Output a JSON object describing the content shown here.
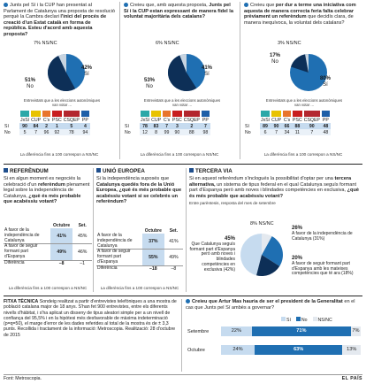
{
  "colors": {
    "si": "#1f6fb2",
    "no": "#0d2f57",
    "nsnc": "#c8d4e0",
    "light": "#c6dbef",
    "lighter": "#eaf1f8"
  },
  "top_panels": [
    {
      "question_pre": "Junts pel Sí i la CUP han presentat al Parlament de Catalunya una proposta de resolució perquè la Cambra declari ",
      "question_bold": "l'inici del procés de creació d'un Estat català en forma de república. Esteu d'acord amb aquesta proposta?",
      "labels": {
        "si": "Sí",
        "no": "No",
        "nsnc": "NS/NC"
      },
      "pct": {
        "si": "42%",
        "no": "51%",
        "nsnc": "7%"
      },
      "voters_label": "Entrevistats que a les eleccions autonòmiques van votar ...",
      "parties": [
        "JxSí",
        "CUP",
        "C's",
        "PSC",
        "CSQEP",
        "PP"
      ],
      "row_si": [
        "Sí",
        "90",
        "84",
        "2",
        "1",
        "5",
        "4"
      ],
      "row_no": [
        "No",
        "5",
        "7",
        "96",
        "92",
        "78",
        "94"
      ],
      "diff": "La diferència fins a 100 correspon a NS/NC"
    },
    {
      "question_pre": "Creieu que, amb aquesta proposta, ",
      "question_bold": "Junts pel Sí i la CUP estan expressant de manera fidel la voluntat majoritària dels catalans?",
      "labels": {
        "si": "Sí",
        "no": "No",
        "nsnc": "NS/NC"
      },
      "pct": {
        "si": "41%",
        "no": "53%",
        "nsnc": "6%"
      },
      "voters_label": "Entrevistats que a les eleccions autonòmiques van votar ...",
      "parties": [
        "JxSí",
        "CUP",
        "C's",
        "PSC",
        "CSQEP",
        "PP"
      ],
      "row_si": [
        "Sí",
        "78",
        "83",
        "7",
        "3",
        "2",
        "7"
      ],
      "row_no": [
        "No",
        "12",
        "8",
        "99",
        "90",
        "88",
        "98"
      ],
      "diff": "La diferència fins a 100 correspon a NS/NC"
    },
    {
      "question_pre": "Creieu que ",
      "question_bold": "per dur a terme una iniciativa com aquesta de manera correcta feria falta celebrar prèviament un referèndum",
      "question_post": " que decidís clara, de manera inequívoca, la voluntat dels catalans?",
      "labels": {
        "si": "Sí",
        "no": "No",
        "nsnc": "NS/NC"
      },
      "pct": {
        "si": "80%",
        "no": "17%",
        "nsnc": "3%"
      },
      "voters_label": "Entrevistats que a les eleccions autonòmiques van votar ...",
      "parties": [
        "JxSí",
        "CUP",
        "C's",
        "PSC",
        "CSQEP",
        "PP"
      ],
      "row_si": [
        "Sí",
        "89",
        "90",
        "66",
        "88",
        "90",
        "48"
      ],
      "row_no": [
        "No",
        "6",
        "7",
        "34",
        "11",
        "7",
        "48"
      ],
      "diff": "La diferència fins a 100 correspon a NS/NC"
    }
  ],
  "referendum": {
    "title": "REFERÈNDUM",
    "question_pre": "Si en algun moment es negociés la celebració d'un ",
    "question_bold": "referèndum",
    "question_mid": " plenament legal sobre la independència de Catalunya, ",
    "question_bold2": "¿què és més probable que acabéssiu votant?",
    "col1": "Octubre",
    "col2": "Set.",
    "rows": [
      {
        "label": "A favor de la independència de Catalunya",
        "v1": "41%",
        "v2": "45%"
      },
      {
        "label": "A favor de seguir formant part d'Espanya",
        "v1": "49%",
        "v2": "46%"
      },
      {
        "label": "Diferència",
        "v1": "–8",
        "v2": "–1"
      }
    ],
    "diff": "La diferència fins a 100 correspon a NS/NC"
  },
  "ue": {
    "title": "UNIÓ EUROPEA",
    "question_pre": "Si la independència suposés que ",
    "question_bold": "Catalunya quedés fora de la Unió Europea, ¿què és més probable que acabéssiu votant si se celebrés un referèndum?",
    "col1": "Octubre",
    "col2": "Set.",
    "rows": [
      {
        "label": "A favor de la independència de Catalunya",
        "v1": "37%",
        "v2": "41%"
      },
      {
        "label": "A favor de seguir formant part d'Espanya",
        "v1": "55%",
        "v2": "49%"
      },
      {
        "label": "Diferència",
        "v1": "–18",
        "v2": "–8"
      }
    ],
    "diff": "La diferència fins a 100 correspon a NS/NC"
  },
  "tercera": {
    "title": "TERCERA VIA",
    "question_pre": "Si en aquest referèndum s'inclogués la possibilitat d'optar per una ",
    "question_bold": "tercera alternativa,",
    "question_post": " un sistema de tipus federal en el qual Catalunya seguís formant part d'Espanya però amb noves i blindades competències en exclusiva, ",
    "question_bold2": "¿què és més probable que acabéssiu votant?",
    "subtitle": "Entre parèntesis, resposta del mes de setembre",
    "chart_values": {
      "federal": "45%",
      "indep": "26%",
      "espanya": "20%",
      "nsnc": "8%"
    },
    "nsnc_label": "NS/NC",
    "label_federal": "Que Catalunya seguís formant part d'Espanya però amb noves i blindades competències en exclusiva (42%)",
    "label_indep": "A favor de la independència de Catalunya (31%)",
    "label_espanya": "A favor de seguir formant part d'Espanya amb les mateixes competències que té ara (18%)"
  },
  "fitxa": {
    "title": "FITXA TÈCNICA",
    "text": "Sondeig realitzat a partir d'entrevistes telefòniques a una mostra de població catalana major de 18 anys. S'han fet 900 entrevistes, entre els diferents nivells d'hàbitat, i s'ha aplicat un disseny de tipus aleatori simple per a un nivell de confiança del 95,5% i en la hipòtesi més desfavorable de màxima indeterminació (p=q=50), el marge d'error de les dades referides al total de la mostra és de ± 3,3 punts. Recollida i tractament de la informació: Metroscopia. Realització: 28 d'octubre de 2015"
  },
  "artur": {
    "question_pre": "Creieu que Artur Mas hauria de ser el president de la Generalitat",
    "question_post": " en el cas que Junts pel Sí ambès a governar?",
    "legend": {
      "si": "Sí",
      "no": "No",
      "nsnc": "NS/NC"
    },
    "categories": [
      "Setembre",
      "Octubre"
    ],
    "chart_data": {
      "type": "bar",
      "categories": [
        "Setembre",
        "Octubre"
      ],
      "series": [
        {
          "name": "Sí",
          "values": [
            22,
            24
          ]
        },
        {
          "name": "No",
          "values": [
            71,
            63
          ]
        },
        {
          "name": "NS/NC",
          "values": [
            7,
            13
          ]
        }
      ]
    },
    "labels": [
      [
        "22%",
        "71%",
        "7%"
      ],
      [
        "24%",
        "63%",
        "13%"
      ]
    ]
  },
  "footer": {
    "source": "Font: Metroscopia.",
    "brand": "EL PAÍS"
  }
}
